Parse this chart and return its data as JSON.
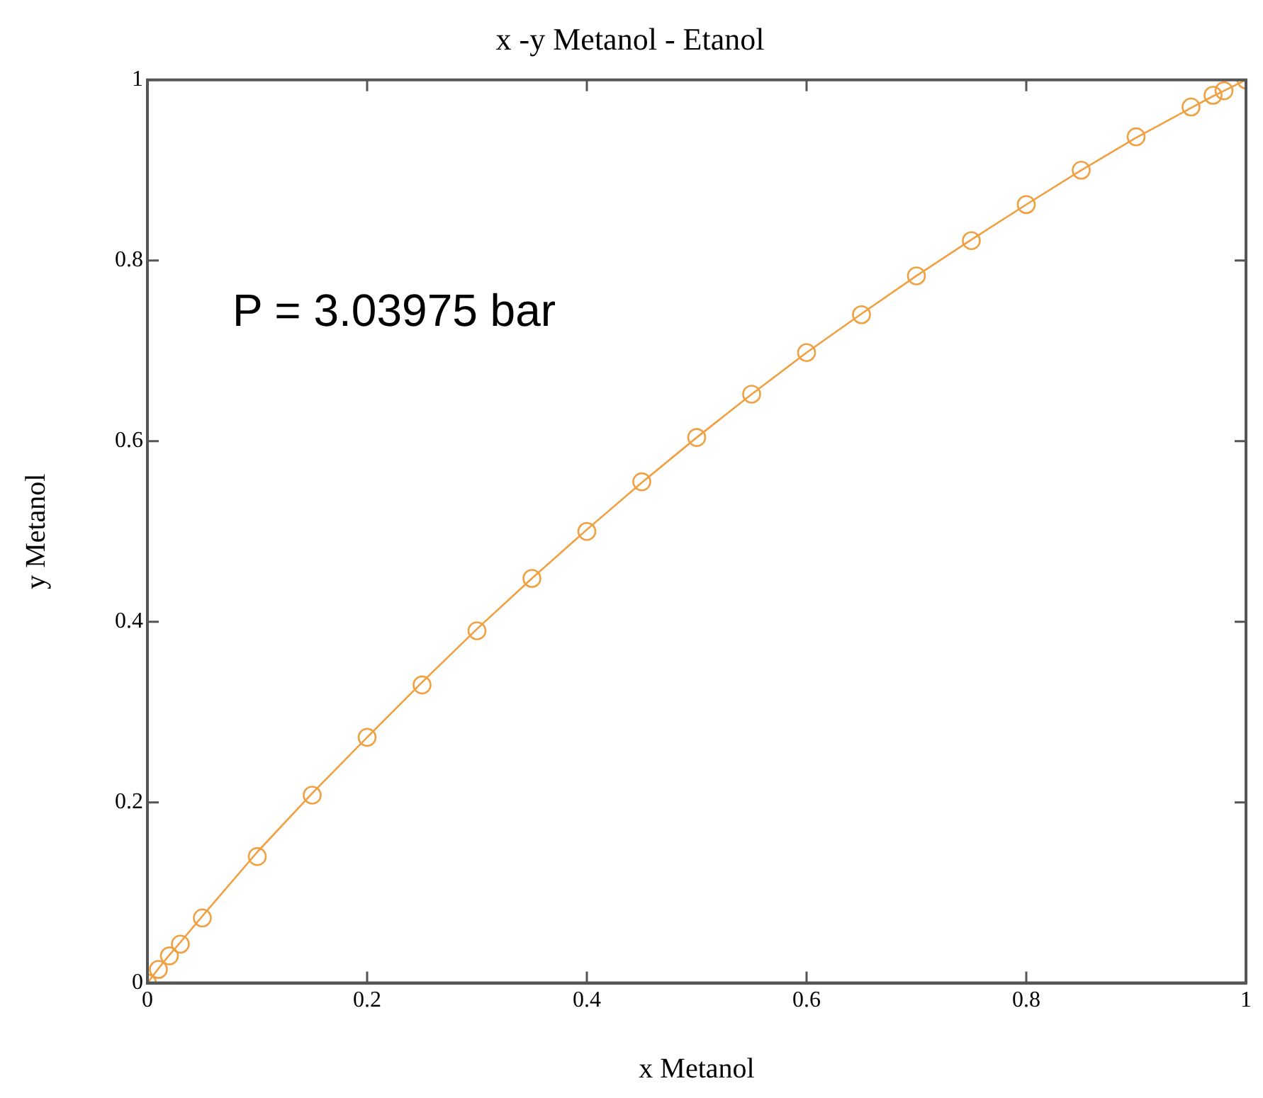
{
  "chart_data": {
    "type": "scatter",
    "title": "x -y Metanol - Etanol",
    "xlabel": "x Metanol",
    "ylabel": "y Metanol",
    "annotations": [
      "P = 3.03975 bar"
    ],
    "xlim": [
      0,
      1
    ],
    "ylim": [
      0,
      1
    ],
    "xticks": [
      0,
      0.2,
      0.4,
      0.6,
      0.8,
      1
    ],
    "yticks": [
      0,
      0.2,
      0.4,
      0.6,
      0.8,
      1
    ],
    "grid": false,
    "legend": false,
    "series": [
      {
        "type": "line",
        "color": "#f0a040",
        "marker": "none",
        "line_style": "solid",
        "x": [
          0,
          0.01,
          0.02,
          0.03,
          0.05,
          0.1,
          0.15,
          0.2,
          0.25,
          0.3,
          0.35,
          0.4,
          0.45,
          0.5,
          0.55,
          0.6,
          0.65,
          0.7,
          0.75,
          0.8,
          0.85,
          0.9,
          0.95,
          0.97,
          0.98,
          1
        ],
        "values": [
          0,
          0.016,
          0.031,
          0.045,
          0.074,
          0.145,
          0.21,
          0.272,
          0.333,
          0.392,
          0.448,
          0.502,
          0.554,
          0.604,
          0.652,
          0.698,
          0.741,
          0.783,
          0.823,
          0.862,
          0.9,
          0.936,
          0.969,
          0.982,
          0.988,
          1
        ]
      },
      {
        "type": "scatter",
        "color": "#f0a040",
        "marker": "circle",
        "x": [
          0,
          0.01,
          0.02,
          0.03,
          0.05,
          0.1,
          0.15,
          0.2,
          0.25,
          0.3,
          0.35,
          0.4,
          0.45,
          0.5,
          0.55,
          0.6,
          0.65,
          0.7,
          0.75,
          0.8,
          0.85,
          0.9,
          0.95,
          0.97,
          0.98,
          1
        ],
        "values": [
          0,
          0.015,
          0.03,
          0.043,
          0.072,
          0.14,
          0.208,
          0.272,
          0.33,
          0.39,
          0.448,
          0.5,
          0.555,
          0.604,
          0.652,
          0.698,
          0.74,
          0.783,
          0.822,
          0.862,
          0.9,
          0.937,
          0.97,
          0.983,
          0.988,
          1
        ]
      }
    ]
  }
}
